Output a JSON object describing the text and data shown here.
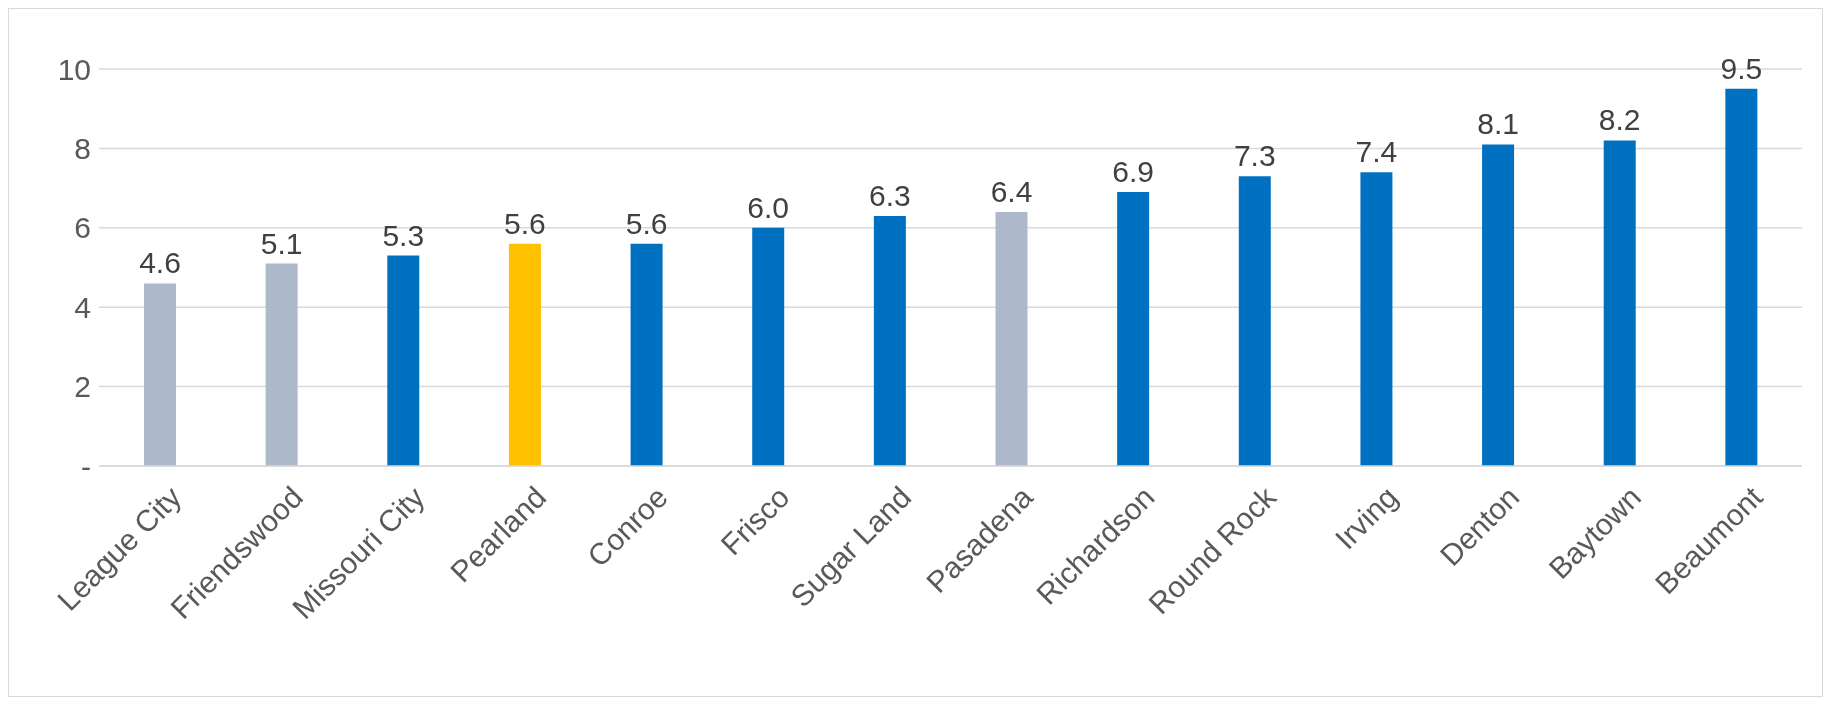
{
  "chart_data": {
    "type": "bar",
    "categories": [
      "League City",
      "Friendswood",
      "Missouri City",
      "Pearland",
      "Conroe",
      "Frisco",
      "Sugar Land",
      "Pasadena",
      "Richardson",
      "Round Rock",
      "Irving",
      "Denton",
      "Baytown",
      "Beaumont"
    ],
    "values": [
      4.6,
      5.1,
      5.3,
      5.6,
      5.6,
      6.0,
      6.3,
      6.4,
      6.9,
      7.3,
      7.4,
      8.1,
      8.2,
      9.5
    ],
    "colors": [
      "#adb9ca",
      "#adb9ca",
      "#0070c0",
      "#ffc000",
      "#0070c0",
      "#0070c0",
      "#0070c0",
      "#adb9ca",
      "#0070c0",
      "#0070c0",
      "#0070c0",
      "#0070c0",
      "#0070c0",
      "#0070c0"
    ],
    "value_labels": [
      "4.6",
      "5.1",
      "5.3",
      "5.6",
      "5.6",
      "6.0",
      "6.3",
      "6.4",
      "6.9",
      "7.3",
      "7.4",
      "8.1",
      "8.2",
      "9.5"
    ],
    "ylim": [
      0,
      10
    ],
    "yticks": [
      {
        "value": 0,
        "label": "-"
      },
      2,
      4,
      6,
      8,
      10
    ],
    "grid": "y"
  }
}
